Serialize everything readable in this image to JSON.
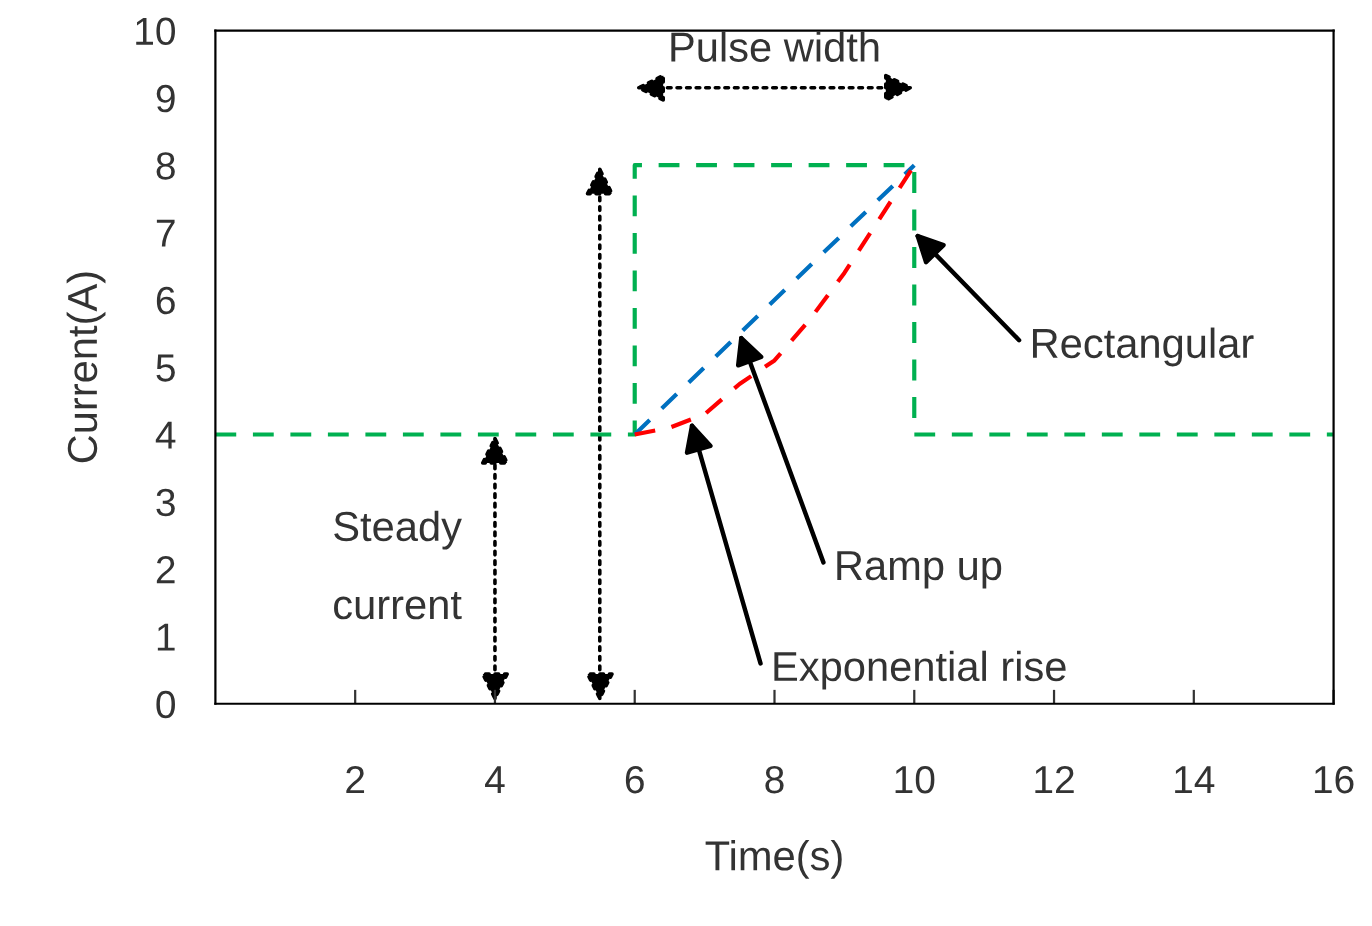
{
  "chart_data": {
    "type": "line",
    "xlabel": "Time(s)",
    "ylabel": "Current(A)",
    "xlim": [
      0,
      16
    ],
    "ylim": [
      0,
      10
    ],
    "xticks": [
      2,
      4,
      6,
      8,
      10,
      12,
      14,
      16
    ],
    "yticks": [
      0,
      1,
      2,
      3,
      4,
      5,
      6,
      7,
      8,
      9,
      10
    ],
    "grid": false,
    "legend": false,
    "marker": "none",
    "line_style": "dashed",
    "series": [
      {
        "color": "#00b050",
        "x": [
          0,
          6,
          6,
          10,
          10,
          16
        ],
        "values": [
          4,
          4,
          8,
          8,
          4,
          4
        ]
      },
      {
        "color": "#0070c0",
        "x": [
          6,
          10
        ],
        "values": [
          4,
          8
        ]
      },
      {
        "color": "#ff0000",
        "x": [
          6,
          6.5,
          7,
          7.5,
          8,
          8.5,
          9,
          9.5,
          10
        ],
        "values": [
          4,
          4.1,
          4.3,
          4.75,
          5.1,
          5.7,
          6.4,
          7.2,
          8
        ]
      }
    ],
    "annotations": [
      "Pulse width",
      "Steady\ncurrent",
      {
        "text": "Rectangular",
        "x": 10,
        "y": 7
      },
      {
        "text": "Ramp up",
        "x": 7.5,
        "y": 5.5
      },
      {
        "text": "Exponential rise",
        "x": 6.8,
        "y": 4.2
      }
    ]
  }
}
